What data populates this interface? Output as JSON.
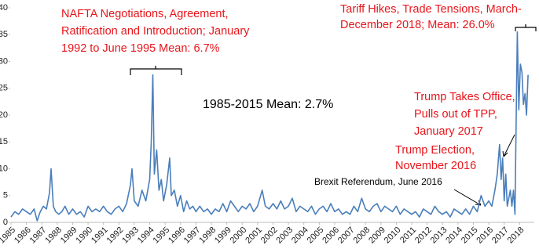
{
  "chart_data": {
    "type": "line",
    "color": "#4a7ebb",
    "xlim": [
      1985,
      2018.8
    ],
    "ylim": [
      0,
      40
    ],
    "yticks": [
      0,
      5,
      10,
      15,
      20,
      25,
      30,
      35,
      40
    ],
    "xticks": [
      1985,
      1986,
      1987,
      1988,
      1989,
      1990,
      1991,
      1992,
      1993,
      1994,
      1995,
      1996,
      1997,
      1998,
      1999,
      2000,
      2001,
      2002,
      2003,
      2004,
      2005,
      2006,
      2007,
      2008,
      2009,
      2010,
      2011,
      2012,
      2013,
      2014,
      2015,
      2016,
      2017,
      2018
    ],
    "x": [
      1985,
      1985.25,
      1985.5,
      1985.75,
      1986,
      1986.25,
      1986.5,
      1986.7,
      1986.9,
      1987.1,
      1987.3,
      1987.5,
      1987.6,
      1987.75,
      1987.9,
      1988.1,
      1988.3,
      1988.5,
      1988.75,
      1989,
      1989.25,
      1989.5,
      1989.75,
      1990,
      1990.25,
      1990.5,
      1990.75,
      1991,
      1991.25,
      1991.5,
      1991.75,
      1992,
      1992.25,
      1992.5,
      1992.75,
      1992.85,
      1993,
      1993.25,
      1993.5,
      1993.75,
      1994,
      1994.1,
      1994.2,
      1994.3,
      1994.45,
      1994.6,
      1994.75,
      1994.9,
      1995.1,
      1995.3,
      1995.4,
      1995.6,
      1995.8,
      1996,
      1996.2,
      1996.4,
      1996.6,
      1996.8,
      1997,
      1997.25,
      1997.5,
      1997.75,
      1998,
      1998.25,
      1998.5,
      1998.75,
      1999,
      1999.25,
      1999.5,
      1999.75,
      2000,
      2000.25,
      2000.5,
      2000.75,
      2001,
      2001.3,
      2001.5,
      2001.75,
      2002,
      2002.25,
      2002.5,
      2002.75,
      2003,
      2003.25,
      2003.5,
      2003.75,
      2004,
      2004.25,
      2004.5,
      2004.75,
      2005,
      2005.25,
      2005.5,
      2005.75,
      2006,
      2006.25,
      2006.5,
      2006.75,
      2007,
      2007.25,
      2007.5,
      2007.75,
      2008,
      2008.25,
      2008.5,
      2008.75,
      2009,
      2009.25,
      2009.5,
      2009.75,
      2010,
      2010.25,
      2010.5,
      2010.75,
      2011,
      2011.25,
      2011.5,
      2011.75,
      2012,
      2012.25,
      2012.5,
      2012.75,
      2013,
      2013.25,
      2013.5,
      2013.75,
      2014,
      2014.25,
      2014.5,
      2014.75,
      2015,
      2015.25,
      2015.5,
      2015.75,
      2016,
      2016.2,
      2016.4,
      2016.55,
      2016.7,
      2016.8,
      2016.9,
      2017,
      2017.1,
      2017.2,
      2017.4,
      2017.5,
      2017.6,
      2017.7,
      2017.85,
      2017.95,
      2018.05,
      2018.15,
      2018.25,
      2018.35,
      2018.45,
      2018.55
    ],
    "values": [
      1,
      2,
      1.5,
      2.5,
      2,
      1.5,
      2.5,
      0.3,
      2,
      3,
      2.5,
      5.5,
      10,
      3,
      2,
      1.5,
      2,
      3,
      1.5,
      2.5,
      1.5,
      2,
      1,
      3,
      2,
      2.5,
      2,
      3,
      2,
      1.5,
      2.5,
      3,
      2,
      3.5,
      7,
      10,
      4,
      3,
      6,
      4,
      8,
      15,
      27.5,
      9,
      13.5,
      6,
      8,
      4,
      7,
      12,
      5,
      6,
      3,
      5,
      2,
      4,
      2.5,
      3,
      2,
      3,
      2,
      2.5,
      1.5,
      2.5,
      2,
      3.5,
      2,
      4,
      3,
      2,
      3,
      2.5,
      3.5,
      2,
      3,
      6,
      3,
      2.5,
      3.5,
      2.5,
      4,
      2.5,
      3,
      4.5,
      2,
      3,
      2.5,
      2,
      3,
      1.5,
      2.5,
      3,
      2,
      3.5,
      2,
      2.5,
      1.5,
      2,
      1.5,
      3,
      2,
      4.5,
      2.5,
      2,
      3,
      3.5,
      2,
      3,
      2.5,
      2,
      3,
      1.5,
      2.5,
      2,
      1.5,
      2,
      1,
      2.5,
      2,
      1.5,
      3,
      2,
      1.5,
      2,
      1,
      2.5,
      2,
      1.5,
      2.5,
      1.5,
      3,
      2,
      5,
      3,
      4,
      3,
      6,
      9,
      14.5,
      8,
      12,
      4,
      9,
      3,
      6,
      3,
      6,
      1.5,
      35.5,
      21,
      29.5,
      28,
      22,
      24,
      20,
      27.5
    ],
    "annotations": [
      [
        "NAFTA Negotiations, Agreement,",
        "Ratification and Introduction; January",
        "1992 to June 1995 Mean: 6.7%"
      ],
      [
        "Tariff Hikes, Trade Tensions, March-",
        "December 2018; Mean: 26.0%"
      ],
      [
        "1985-2015 Mean: 2.7%"
      ],
      [
        "Trump Takes Office,",
        "Pulls out of TPP,",
        "January 2017"
      ],
      [
        "Trump Election,",
        "November 2016"
      ],
      [
        "Brexit Referendum, June 2016"
      ]
    ]
  }
}
